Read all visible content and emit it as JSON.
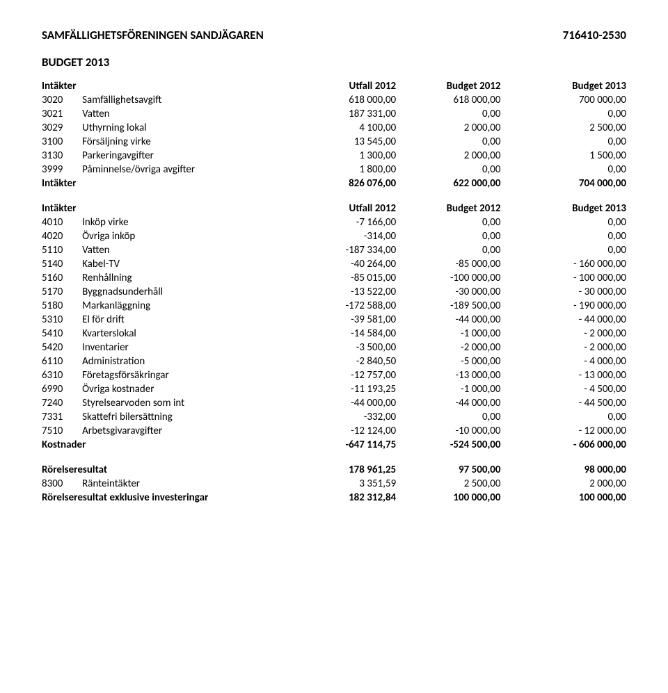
{
  "header": {
    "org_name": "SAMFÄLLIGHETSFÖRENINGEN SANDJÄGAREN",
    "org_nr": "716410-2530"
  },
  "section_title": "BUDGET 2013",
  "col_headers": {
    "intakter": "Intäkter",
    "utfall": "Utfall 2012",
    "b2012": "Budget 2012",
    "b2013": "Budget 2013"
  },
  "income_rows": [
    {
      "code": "3020",
      "label": "Samfällighetsavgift",
      "v1": "618 000,00",
      "v2": "618 000,00",
      "v3": "700 000,00"
    },
    {
      "code": "3021",
      "label": "Vatten",
      "v1": "187 331,00",
      "v2": "0,00",
      "v3": "0,00"
    },
    {
      "code": "3029",
      "label": "Uthyrning lokal",
      "v1": "4 100,00",
      "v2": "2 000,00",
      "v3": "2 500,00"
    },
    {
      "code": "3100",
      "label": "Försäljning virke",
      "v1": "13 545,00",
      "v2": "0,00",
      "v3": "0,00"
    },
    {
      "code": "3130",
      "label": "Parkeringavgifter",
      "v1": "1 300,00",
      "v2": "2 000,00",
      "v3": "1 500,00"
    },
    {
      "code": "3999",
      "label": "Påminnelse/övriga avgifter",
      "v1": "1 800,00",
      "v2": "0,00",
      "v3": "0,00"
    }
  ],
  "income_total": {
    "label": "Intäkter",
    "v1": "826 076,00",
    "v2": "622 000,00",
    "v3": "704 000,00"
  },
  "expense_rows": [
    {
      "code": "4010",
      "label": "Inköp virke",
      "v1": "-7 166,00",
      "v2": "0,00",
      "v3": "0,00"
    },
    {
      "code": "4020",
      "label": "Övriga inköp",
      "v1": "-314,00",
      "v2": "0,00",
      "v3": "0,00"
    },
    {
      "code": "5110",
      "label": "Vatten",
      "v1": "-187 334,00",
      "v2": "0,00",
      "v3": "0,00"
    },
    {
      "code": "5140",
      "label": "Kabel-TV",
      "v1": "-40 264,00",
      "v2": "-85 000,00",
      "v3": "- 160 000,00"
    },
    {
      "code": "5160",
      "label": "Renhållning",
      "v1": "-85 015,00",
      "v2": "-100 000,00",
      "v3": "- 100 000,00"
    },
    {
      "code": "5170",
      "label": "Byggnadsunderhåll",
      "v1": "-13 522,00",
      "v2": "-30 000,00",
      "v3": "- 30 000,00"
    },
    {
      "code": "5180",
      "label": "Markanläggning",
      "v1": "-172 588,00",
      "v2": "-189 500,00",
      "v3": "- 190 000,00"
    },
    {
      "code": "5310",
      "label": "El för drift",
      "v1": "-39 581,00",
      "v2": "-44 000,00",
      "v3": "- 44 000,00"
    },
    {
      "code": "5410",
      "label": "Kvarterslokal",
      "v1": "-14 584,00",
      "v2": "-1 000,00",
      "v3": "- 2 000,00"
    },
    {
      "code": "5420",
      "label": "Inventarier",
      "v1": "-3 500,00",
      "v2": "-2 000,00",
      "v3": "- 2 000,00"
    },
    {
      "code": "6110",
      "label": "Administration",
      "v1": "-2 840,50",
      "v2": "-5 000,00",
      "v3": "- 4 000,00"
    },
    {
      "code": "6310",
      "label": "Företagsförsäkringar",
      "v1": "-12 757,00",
      "v2": "-13 000,00",
      "v3": "- 13 000,00"
    },
    {
      "code": "6990",
      "label": "Övriga kostnader",
      "v1": "-11 193,25",
      "v2": "-1 000,00",
      "v3": "- 4 500,00"
    },
    {
      "code": "7240",
      "label": "Styrelsearvoden som int",
      "v1": "-44 000,00",
      "v2": "-44 000,00",
      "v3": "- 44 500,00"
    },
    {
      "code": "7331",
      "label": "Skattefri bilersättning",
      "v1": "-332,00",
      "v2": "0,00",
      "v3": "0,00"
    },
    {
      "code": "7510",
      "label": "Arbetsgivaravgifter",
      "v1": "-12 124,00",
      "v2": "-10 000,00",
      "v3": "- 12 000,00"
    }
  ],
  "expense_total": {
    "label": "Kostnader",
    "v1": "-647 114,75",
    "v2": "-524 500,00",
    "v3": "- 606 000,00"
  },
  "result_rows": [
    {
      "bold": true,
      "code": "",
      "label": "Rörelseresultat",
      "v1": "178 961,25",
      "v2": "97 500,00",
      "v3": "98 000,00"
    },
    {
      "bold": false,
      "code": "8300",
      "label": "Ränteintäkter",
      "v1": "3 351,59",
      "v2": "2 500,00",
      "v3": "2 000,00"
    },
    {
      "bold": true,
      "code": "",
      "label": "Rörelseresultat exklusive investeringar",
      "v1": "182 312,84",
      "v2": "100 000,00",
      "v3": "100 000,00"
    }
  ]
}
